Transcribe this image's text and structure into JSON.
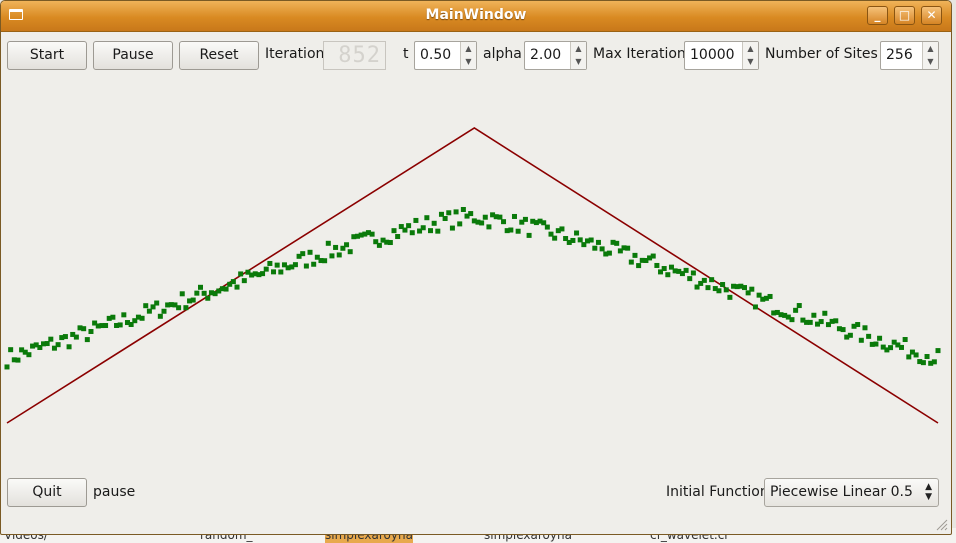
{
  "window": {
    "title": "MainWindow"
  },
  "titlebar_buttons": {
    "minimize": "_",
    "maximize": "□",
    "close": "✕"
  },
  "toolbar": {
    "start_label": "Start",
    "pause_label": "Pause",
    "reset_label": "Reset",
    "iteration_label": "Iteration",
    "iteration_value": "852",
    "t_label": "t",
    "t_value": "0.50",
    "alpha_label": "alpha",
    "alpha_value": "2.00",
    "max_iteration_label": "Max Iteration",
    "max_iteration_value": "10000",
    "sites_label": "Number of  Sites",
    "sites_value": "256"
  },
  "bottom": {
    "quit_label": "Quit",
    "status_text": "pause",
    "initial_function_label": "Initial Function",
    "initial_function_value": "Piecewise Linear 0.5"
  },
  "desktop_taskbar": [
    "Videos/",
    "random_",
    "simplexaroyna",
    "simplexaroyna",
    "cf_wavelet.cr"
  ],
  "colors": {
    "titlebar": "#d98a22",
    "window_bg": "#efeeea",
    "initial_curve": "#8b0000",
    "simulated_points": "#0a7a0a"
  },
  "chart_data": {
    "type": "scatter",
    "title": "",
    "xlabel": "",
    "ylabel": "",
    "x_range": [
      0,
      255
    ],
    "y_range": [
      0,
      1
    ],
    "series": [
      {
        "kind": "line",
        "values_at": "piecewise",
        "points": [
          [
            0,
            0.0
          ],
          [
            128,
            1.0
          ],
          [
            255,
            0.0
          ]
        ]
      },
      {
        "kind": "points",
        "count": 256,
        "profile": "noisy smoothed tent around the line, flatter near peak and raised near edges"
      }
    ]
  }
}
